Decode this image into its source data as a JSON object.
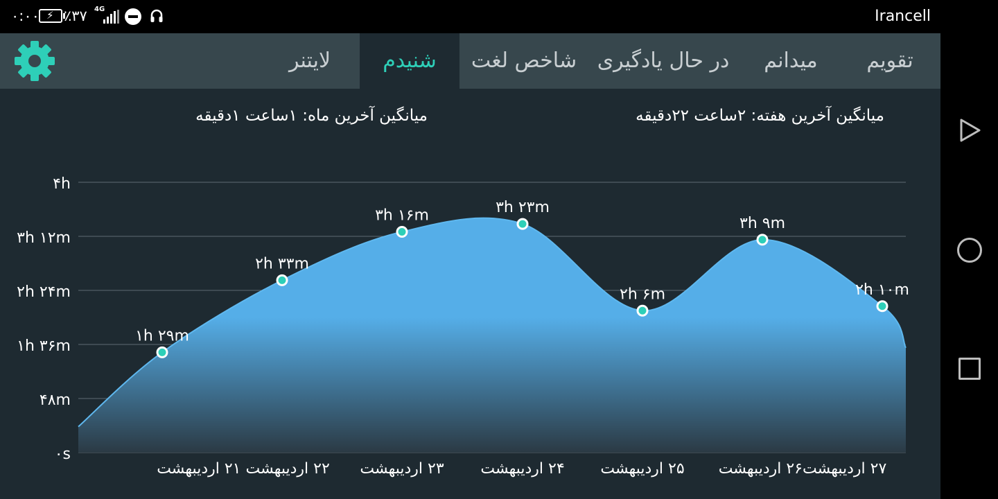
{
  "status_bar": {
    "time": "۰:۰۰",
    "battery_percent": "٪۳۷",
    "network_type": "4G",
    "carrier": "Irancell",
    "icons": [
      "battery-charging-icon",
      "signal-icon",
      "do-not-disturb-icon",
      "headset-icon"
    ]
  },
  "tabs": [
    {
      "label": "تقویم",
      "active": false
    },
    {
      "label": "میدانم",
      "active": false
    },
    {
      "label": "در حال یادگیری",
      "active": false
    },
    {
      "label": "شاخص لغت",
      "active": false
    },
    {
      "label": "شنیدم",
      "active": true
    },
    {
      "label": "لایتنر",
      "active": false
    }
  ],
  "settings_icon": "gear-icon",
  "averages": {
    "week": "میانگین آخرین هفته: ۲ساعت  ۲۲دقیقه",
    "month": "میانگین آخرین ماه: ۱ساعت  ۱دقیقه"
  },
  "colors": {
    "accent": "#2ecfb8",
    "area_fill": "#55aee8",
    "point_fill": "#2ecfb8"
  },
  "chart_data": {
    "type": "area",
    "x": [
      "۲۱ اردیبهشت",
      "۲۲ اردیبهشت",
      "۲۳ اردیبهشت",
      "۲۴ اردیبهشت",
      "۲۵ اردیبهشت",
      "۲۶ اردیبهشت",
      "۲۷ اردیبهشت"
    ],
    "x_tick_labels": [
      "۲۲ اردیبهشت ۲۱ اردیبهشت",
      "۲۳ اردیبهشت",
      "۲۴ اردیبهشت",
      "۲۵ اردیبهشت",
      "۲۷ اردیبهشت۲۶ اردیبهشت"
    ],
    "values_minutes": [
      89,
      153,
      196,
      203,
      126,
      189,
      130
    ],
    "data_labels": [
      "۱h ۲۹m",
      "۲h ۳۳m",
      "۳h ۱۶m",
      "۳h ۲۳m",
      "۲h ۶m",
      "۳h ۹m",
      "۲h ۱۰m"
    ],
    "y_ticks_minutes": [
      0,
      48,
      96,
      144,
      192,
      240
    ],
    "y_tick_labels": [
      "۰s",
      "۴۸m",
      "۱h ۳۶m",
      "۲h ۲۴m",
      "۳h ۱۲m",
      "۴h"
    ],
    "ylim_minutes": [
      0,
      240
    ],
    "grid": true,
    "legend": "none"
  },
  "nav_bar": {
    "icons": [
      "back-icon",
      "home-icon",
      "recent-apps-icon"
    ]
  }
}
